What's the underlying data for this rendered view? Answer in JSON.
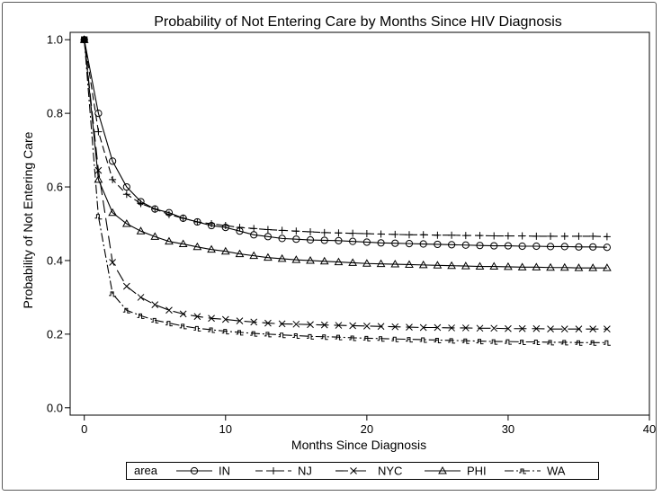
{
  "chart_data": {
    "type": "line",
    "title": "Probability of Not Entering Care by Months Since HIV Diagnosis",
    "xlabel": "Months Since Diagnosis",
    "ylabel": "Probability of Not Entering Care",
    "xlim": [
      -1,
      40
    ],
    "ylim": [
      -0.02,
      1.02
    ],
    "xticks": [
      "0",
      "10",
      "20",
      "30",
      "40"
    ],
    "yticks": [
      "0.0",
      "0.2",
      "0.4",
      "0.6",
      "0.8",
      "1.0"
    ],
    "xtick_values": [
      0,
      10,
      20,
      30,
      40
    ],
    "ytick_values": [
      0.0,
      0.2,
      0.4,
      0.6,
      0.8,
      1.0
    ],
    "legend": {
      "title": "area",
      "position": "bottom"
    },
    "x": [
      0,
      1,
      2,
      3,
      4,
      5,
      6,
      7,
      8,
      9,
      10,
      11,
      12,
      13,
      14,
      15,
      16,
      17,
      18,
      19,
      20,
      21,
      22,
      23,
      24,
      25,
      26,
      27,
      28,
      29,
      30,
      31,
      32,
      33,
      34,
      35,
      36,
      37
    ],
    "series": [
      {
        "name": "IN",
        "marker": "circle",
        "dash": "",
        "values": [
          1.0,
          0.8,
          0.67,
          0.6,
          0.56,
          0.54,
          0.53,
          0.515,
          0.505,
          0.495,
          0.49,
          0.48,
          0.47,
          0.465,
          0.46,
          0.458,
          0.456,
          0.455,
          0.454,
          0.452,
          0.45,
          0.448,
          0.447,
          0.446,
          0.445,
          0.444,
          0.443,
          0.442,
          0.441,
          0.44,
          0.44,
          0.439,
          0.439,
          0.438,
          0.438,
          0.437,
          0.437,
          0.436
        ]
      },
      {
        "name": "NJ",
        "marker": "plus",
        "dash": "8,4",
        "values": [
          1.0,
          0.75,
          0.62,
          0.58,
          0.555,
          0.54,
          0.525,
          0.515,
          0.505,
          0.5,
          0.495,
          0.49,
          0.487,
          0.484,
          0.482,
          0.48,
          0.478,
          0.476,
          0.475,
          0.474,
          0.473,
          0.472,
          0.471,
          0.47,
          0.47,
          0.469,
          0.469,
          0.468,
          0.468,
          0.467,
          0.467,
          0.467,
          0.466,
          0.466,
          0.466,
          0.466,
          0.466,
          0.465
        ]
      },
      {
        "name": "NYC",
        "marker": "x",
        "dash": "14,6",
        "values": [
          1.0,
          0.645,
          0.395,
          0.33,
          0.3,
          0.28,
          0.265,
          0.255,
          0.248,
          0.243,
          0.24,
          0.236,
          0.233,
          0.23,
          0.228,
          0.227,
          0.226,
          0.225,
          0.224,
          0.223,
          0.222,
          0.221,
          0.22,
          0.219,
          0.218,
          0.218,
          0.217,
          0.217,
          0.216,
          0.216,
          0.215,
          0.215,
          0.215,
          0.214,
          0.214,
          0.214,
          0.214,
          0.214
        ]
      },
      {
        "name": "PHI",
        "marker": "triangle",
        "dash": "",
        "values": [
          1.0,
          0.62,
          0.53,
          0.5,
          0.48,
          0.465,
          0.452,
          0.445,
          0.437,
          0.43,
          0.425,
          0.418,
          0.413,
          0.408,
          0.405,
          0.402,
          0.4,
          0.398,
          0.396,
          0.394,
          0.392,
          0.391,
          0.39,
          0.389,
          0.388,
          0.387,
          0.386,
          0.385,
          0.384,
          0.384,
          0.383,
          0.382,
          0.382,
          0.381,
          0.381,
          0.38,
          0.38,
          0.38
        ]
      },
      {
        "name": "WA",
        "marker": "squiggle",
        "dash": "10,3,2,3",
        "values": [
          1.0,
          0.52,
          0.31,
          0.265,
          0.25,
          0.238,
          0.23,
          0.222,
          0.216,
          0.212,
          0.208,
          0.205,
          0.202,
          0.2,
          0.198,
          0.196,
          0.194,
          0.193,
          0.192,
          0.19,
          0.189,
          0.188,
          0.187,
          0.186,
          0.185,
          0.184,
          0.183,
          0.182,
          0.181,
          0.18,
          0.18,
          0.179,
          0.179,
          0.178,
          0.178,
          0.177,
          0.177,
          0.177
        ]
      }
    ]
  }
}
